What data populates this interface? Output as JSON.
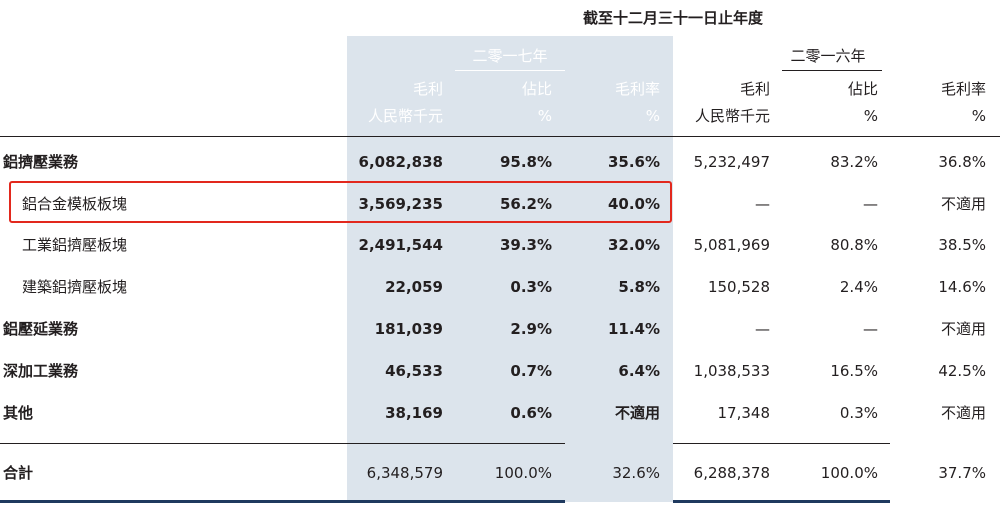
{
  "table": {
    "period_title": "截至十二月三十一日止年度",
    "year_2017": "二零一七年",
    "year_2016": "二零一六年",
    "col_headers": [
      {
        "line1": "毛利",
        "line2": "人民幣千元"
      },
      {
        "line1": "佔比",
        "line2": "%"
      },
      {
        "line1": "毛利率",
        "line2": "%"
      },
      {
        "line1": "毛利",
        "line2": "人民幣千元"
      },
      {
        "line1": "佔比",
        "line2": "%"
      },
      {
        "line1": "毛利率",
        "line2": "%"
      }
    ],
    "rows": [
      {
        "label": "鋁擠壓業務",
        "v": [
          "6,082,838",
          "95.8%",
          "35.6%",
          "5,232,497",
          "83.2%",
          "36.8%"
        ]
      },
      {
        "label": "鋁合金模板板塊",
        "v": [
          "3,569,235",
          "56.2%",
          "40.0%",
          "—",
          "—",
          "不適用"
        ]
      },
      {
        "label": "工業鋁擠壓板塊",
        "v": [
          "2,491,544",
          "39.3%",
          "32.0%",
          "5,081,969",
          "80.8%",
          "38.5%"
        ]
      },
      {
        "label": "建築鋁擠壓板塊",
        "v": [
          "22,059",
          "0.3%",
          "5.8%",
          "150,528",
          "2.4%",
          "14.6%"
        ]
      },
      {
        "label": "鋁壓延業務",
        "v": [
          "181,039",
          "2.9%",
          "11.4%",
          "—",
          "—",
          "不適用"
        ]
      },
      {
        "label": "深加工業務",
        "v": [
          "46,533",
          "0.7%",
          "6.4%",
          "1,038,533",
          "16.5%",
          "42.5%"
        ]
      },
      {
        "label": "其他",
        "v": [
          "38,169",
          "0.6%",
          "不適用",
          "17,348",
          "0.3%",
          "不適用"
        ]
      }
    ],
    "total": {
      "label": "合計",
      "v": [
        "6,348,579",
        "100.0%",
        "32.6%",
        "6,288,378",
        "100.0%",
        "37.7%"
      ]
    }
  },
  "colors": {
    "shade": "#dce4ec",
    "header_text": "#ffffff",
    "highlight_border": "#e2281d",
    "rule_dark": "#1f3a5f"
  }
}
